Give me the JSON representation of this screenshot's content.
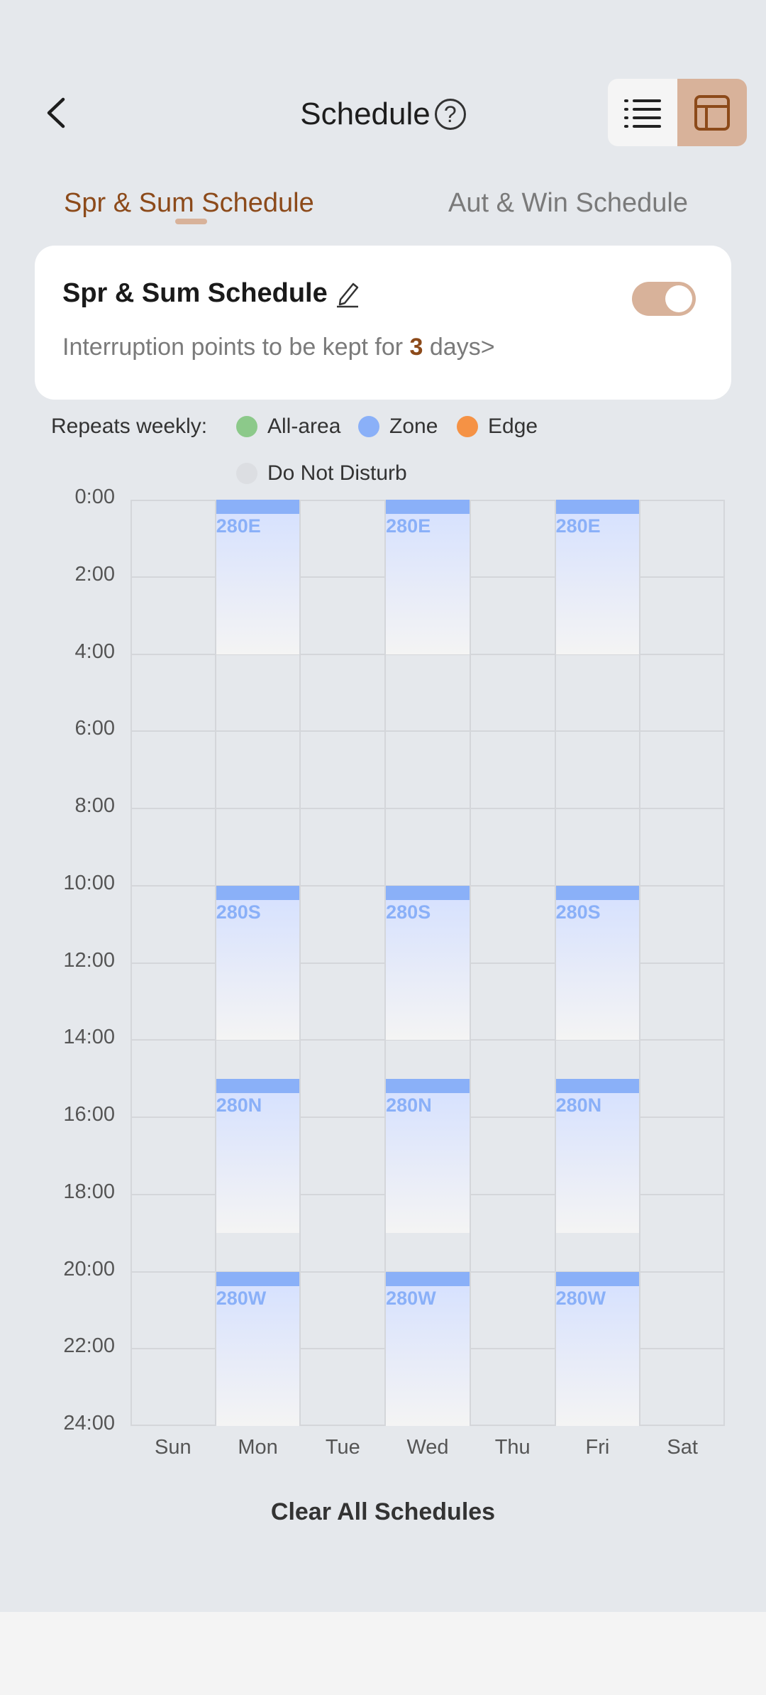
{
  "header": {
    "title": "Schedule",
    "help_glyph": "?",
    "back_icon": "chevron-left-icon"
  },
  "view_toggle": {
    "list_icon": "list-icon",
    "grid_icon": "calendar-grid-icon",
    "selected": "grid"
  },
  "tabs": [
    {
      "label": "Spr & Sum Schedule",
      "active": true
    },
    {
      "label": "Aut & Win Schedule",
      "active": false
    }
  ],
  "card": {
    "title": "Spr & Sum Schedule",
    "enabled": true,
    "subtitle_prefix": "Interruption points to be kept for ",
    "subtitle_days": "3",
    "subtitle_suffix": " days>"
  },
  "legend": {
    "label": "Repeats weekly:",
    "items": [
      {
        "label": "All-area",
        "color": "#8cc98a"
      },
      {
        "label": "Zone",
        "color": "#8ab0f8"
      },
      {
        "label": "Edge",
        "color": "#f59245"
      },
      {
        "label": "Do Not Disturb",
        "color": "#dcdee2"
      }
    ]
  },
  "chart": {
    "y_labels": [
      "0:00",
      "2:00",
      "4:00",
      "6:00",
      "8:00",
      "10:00",
      "12:00",
      "14:00",
      "16:00",
      "18:00",
      "20:00",
      "22:00",
      "24:00"
    ],
    "days": [
      "Sun",
      "Mon",
      "Tue",
      "Wed",
      "Thu",
      "Fri",
      "Sat"
    ],
    "blocks": [
      {
        "day": "Mon",
        "start_hour": 0,
        "end_hour": 4,
        "label": "280E"
      },
      {
        "day": "Wed",
        "start_hour": 0,
        "end_hour": 4,
        "label": "280E"
      },
      {
        "day": "Fri",
        "start_hour": 0,
        "end_hour": 4,
        "label": "280E"
      },
      {
        "day": "Mon",
        "start_hour": 10,
        "end_hour": 14,
        "label": "280S"
      },
      {
        "day": "Wed",
        "start_hour": 10,
        "end_hour": 14,
        "label": "280S"
      },
      {
        "day": "Fri",
        "start_hour": 10,
        "end_hour": 14,
        "label": "280S"
      },
      {
        "day": "Mon",
        "start_hour": 15,
        "end_hour": 19,
        "label": "280N"
      },
      {
        "day": "Wed",
        "start_hour": 15,
        "end_hour": 19,
        "label": "280N"
      },
      {
        "day": "Fri",
        "start_hour": 15,
        "end_hour": 19,
        "label": "280N"
      },
      {
        "day": "Mon",
        "start_hour": 20,
        "end_hour": 24,
        "label": "280W"
      },
      {
        "day": "Wed",
        "start_hour": 20,
        "end_hour": 24,
        "label": "280W"
      },
      {
        "day": "Fri",
        "start_hour": 20,
        "end_hour": 24,
        "label": "280W"
      }
    ]
  },
  "clear_button": "Clear All Schedules"
}
